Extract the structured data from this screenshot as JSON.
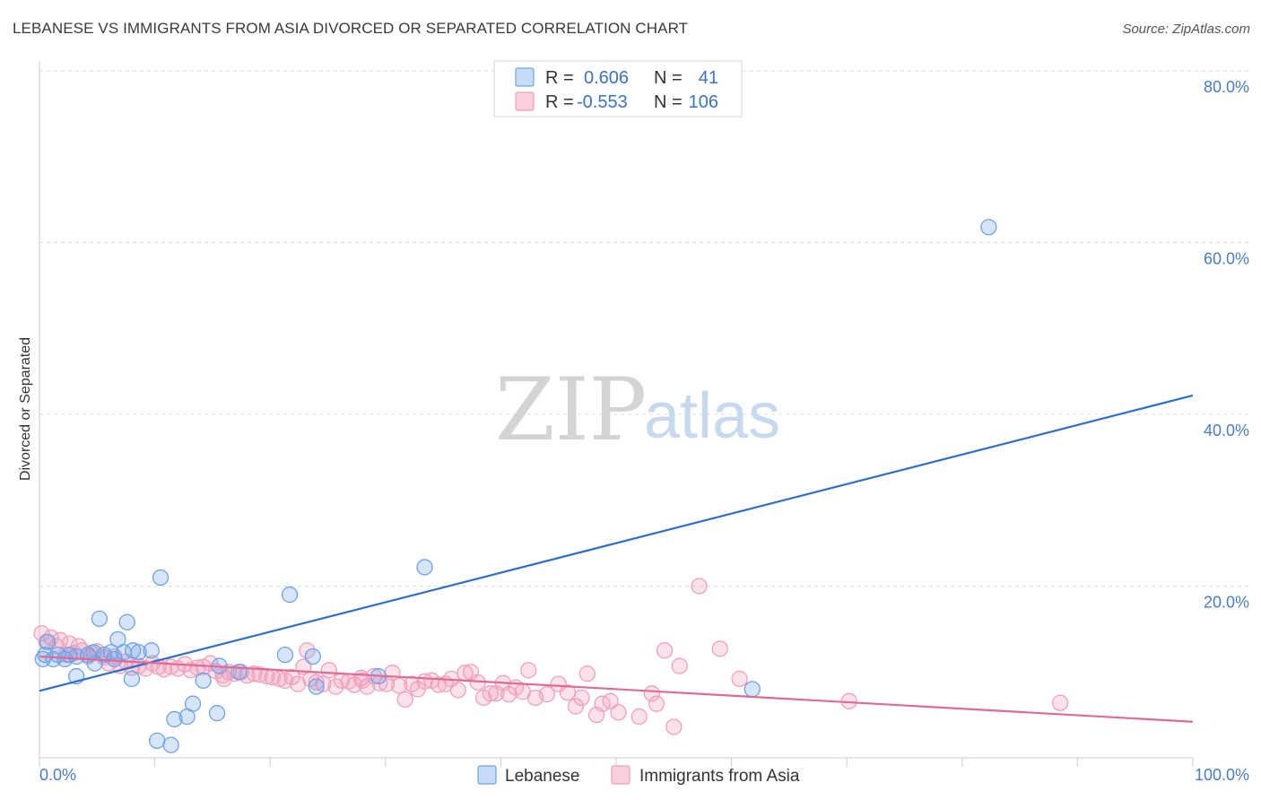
{
  "header": {
    "title": "LEBANESE VS IMMIGRANTS FROM ASIA DIVORCED OR SEPARATED CORRELATION CHART",
    "source": "Source: ZipAtlas.com"
  },
  "watermark": {
    "zip": "ZIP",
    "atlas": "atlas"
  },
  "legend": {
    "rows": [
      {
        "r_label": "R =",
        "r_value": "0.606",
        "n_label": "N =",
        "n_value": "41",
        "color": "#6fa3e8"
      },
      {
        "r_label": "R =",
        "r_value": "-0.553",
        "n_label": "N =",
        "n_value": "106",
        "color": "#f0a0bc"
      }
    ]
  },
  "chart_data": {
    "type": "scatter",
    "title": "LEBANESE VS IMMIGRANTS FROM ASIA DIVORCED OR SEPARATED CORRELATION CHART",
    "xlabel": "",
    "ylabel": "Divorced or Separated",
    "xlim": [
      0,
      100
    ],
    "ylim": [
      0,
      82
    ],
    "x_tick_labels": [
      "0.0%",
      "100.0%"
    ],
    "y_ticks": [
      20,
      40,
      60,
      80
    ],
    "y_tick_labels": [
      "20.0%",
      "40.0%",
      "60.0%",
      "80.0%"
    ],
    "grid": "horizontal-dashed",
    "legend_position": "top-center",
    "series": [
      {
        "name": "Lebanese",
        "color": "#6fa3e8",
        "line_color": "#2d6fcf",
        "trend": [
          [
            0,
            7.8
          ],
          [
            100,
            42.2
          ]
        ],
        "points": [
          [
            0.3,
            11.5
          ],
          [
            0.7,
            13.5
          ],
          [
            1.2,
            11.5
          ],
          [
            1.6,
            12.0
          ],
          [
            2.2,
            11.5
          ],
          [
            2.6,
            12.0
          ],
          [
            3.2,
            11.8
          ],
          [
            3.2,
            9.5
          ],
          [
            4.2,
            12.0
          ],
          [
            4.7,
            12.3
          ],
          [
            4.8,
            11.0
          ],
          [
            5.2,
            16.2
          ],
          [
            5.6,
            12.0
          ],
          [
            6.2,
            12.3
          ],
          [
            6.5,
            11.5
          ],
          [
            6.8,
            13.8
          ],
          [
            7.3,
            12.3
          ],
          [
            7.6,
            15.8
          ],
          [
            8.0,
            9.2
          ],
          [
            8.1,
            12.5
          ],
          [
            8.6,
            12.3
          ],
          [
            9.7,
            12.5
          ],
          [
            10.5,
            21.0
          ],
          [
            10.2,
            2.0
          ],
          [
            11.4,
            1.5
          ],
          [
            11.7,
            4.5
          ],
          [
            12.8,
            4.8
          ],
          [
            13.3,
            6.3
          ],
          [
            14.2,
            9.0
          ],
          [
            15.4,
            5.2
          ],
          [
            15.6,
            10.7
          ],
          [
            17.3,
            10.0
          ],
          [
            21.3,
            12.0
          ],
          [
            21.7,
            19.0
          ],
          [
            23.7,
            11.8
          ],
          [
            24.0,
            8.3
          ],
          [
            29.4,
            9.5
          ],
          [
            33.4,
            22.2
          ],
          [
            61.8,
            8.0
          ],
          [
            82.3,
            61.8
          ],
          [
            0.5,
            12.0
          ]
        ]
      },
      {
        "name": "Immigrants from Asia",
        "color": "#f0a0bc",
        "line_color": "#e06a95",
        "trend": [
          [
            0,
            11.8
          ],
          [
            100,
            4.2
          ]
        ],
        "points": [
          [
            0.2,
            14.5
          ],
          [
            0.6,
            13.5
          ],
          [
            1.0,
            14.0
          ],
          [
            1.5,
            13.0
          ],
          [
            1.8,
            13.7
          ],
          [
            2.3,
            12.0
          ],
          [
            2.6,
            13.3
          ],
          [
            3.0,
            12.2
          ],
          [
            3.4,
            13.0
          ],
          [
            3.7,
            12.5
          ],
          [
            4.2,
            11.8
          ],
          [
            4.5,
            12.2
          ],
          [
            5.0,
            12.4
          ],
          [
            5.6,
            11.7
          ],
          [
            6.0,
            11.0
          ],
          [
            6.5,
            11.8
          ],
          [
            7.0,
            10.7
          ],
          [
            7.5,
            11.2
          ],
          [
            8.0,
            10.5
          ],
          [
            8.6,
            10.7
          ],
          [
            9.2,
            10.4
          ],
          [
            9.8,
            11.0
          ],
          [
            10.3,
            10.6
          ],
          [
            10.8,
            10.3
          ],
          [
            11.4,
            10.6
          ],
          [
            12.0,
            10.4
          ],
          [
            12.6,
            10.9
          ],
          [
            13.1,
            10.2
          ],
          [
            13.7,
            10.5
          ],
          [
            14.2,
            10.6
          ],
          [
            14.8,
            11.0
          ],
          [
            15.3,
            10.1
          ],
          [
            15.9,
            9.6
          ],
          [
            16.4,
            10.0
          ],
          [
            16.9,
            9.8
          ],
          [
            17.5,
            10.0
          ],
          [
            18.0,
            9.6
          ],
          [
            18.6,
            9.8
          ],
          [
            19.1,
            9.7
          ],
          [
            19.7,
            9.5
          ],
          [
            20.2,
            9.4
          ],
          [
            20.8,
            9.2
          ],
          [
            21.3,
            9.0
          ],
          [
            21.9,
            9.4
          ],
          [
            22.4,
            8.6
          ],
          [
            22.9,
            10.6
          ],
          [
            23.5,
            9.2
          ],
          [
            24.0,
            8.8
          ],
          [
            24.6,
            8.6
          ],
          [
            25.1,
            10.2
          ],
          [
            25.7,
            8.3
          ],
          [
            26.2,
            9.0
          ],
          [
            26.8,
            8.9
          ],
          [
            27.3,
            8.5
          ],
          [
            27.9,
            9.3
          ],
          [
            28.4,
            8.3
          ],
          [
            29.0,
            9.5
          ],
          [
            29.5,
            8.7
          ],
          [
            30.1,
            8.6
          ],
          [
            30.6,
            9.9
          ],
          [
            31.2,
            8.4
          ],
          [
            31.7,
            6.8
          ],
          [
            32.3,
            8.6
          ],
          [
            32.8,
            8.0
          ],
          [
            33.4,
            8.9
          ],
          [
            34.0,
            9.0
          ],
          [
            34.6,
            8.5
          ],
          [
            35.2,
            8.6
          ],
          [
            35.7,
            9.2
          ],
          [
            36.3,
            7.9
          ],
          [
            36.9,
            9.9
          ],
          [
            37.4,
            10.0
          ],
          [
            38.0,
            8.8
          ],
          [
            38.5,
            7.0
          ],
          [
            39.1,
            7.5
          ],
          [
            39.6,
            7.5
          ],
          [
            40.2,
            8.7
          ],
          [
            40.7,
            7.4
          ],
          [
            41.3,
            8.2
          ],
          [
            41.9,
            7.7
          ],
          [
            42.4,
            10.2
          ],
          [
            43.0,
            7.0
          ],
          [
            44.0,
            7.4
          ],
          [
            45.0,
            8.6
          ],
          [
            45.8,
            7.6
          ],
          [
            46.5,
            6.0
          ],
          [
            47.0,
            7.0
          ],
          [
            47.5,
            9.8
          ],
          [
            48.3,
            5.0
          ],
          [
            48.8,
            6.3
          ],
          [
            49.5,
            6.6
          ],
          [
            50.2,
            5.3
          ],
          [
            52.0,
            4.8
          ],
          [
            53.1,
            7.5
          ],
          [
            53.5,
            6.3
          ],
          [
            54.2,
            12.5
          ],
          [
            55.0,
            3.6
          ],
          [
            55.5,
            10.7
          ],
          [
            57.2,
            20.0
          ],
          [
            59.0,
            12.7
          ],
          [
            60.7,
            9.2
          ],
          [
            70.2,
            6.6
          ],
          [
            88.5,
            6.4
          ],
          [
            23.2,
            12.5
          ],
          [
            16.0,
            9.2
          ],
          [
            28.0,
            9.0
          ]
        ]
      }
    ]
  }
}
